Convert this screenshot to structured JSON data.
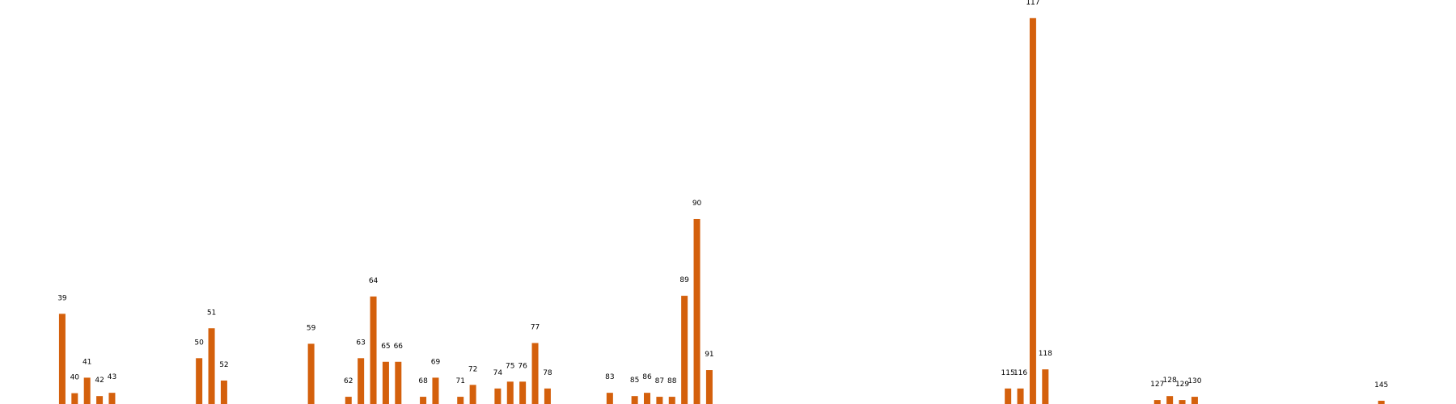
{
  "chart_data": {
    "type": "bar",
    "title": "",
    "xlabel": "",
    "ylabel": "",
    "grid": false,
    "axes_visible": false,
    "bar_color": "#d4600c",
    "label_color": "#000000",
    "categories": [
      "39",
      "40",
      "41",
      "42",
      "43",
      "50",
      "51",
      "52",
      "59",
      "62",
      "63",
      "64",
      "65",
      "66",
      "68",
      "69",
      "71",
      "72",
      "74",
      "75",
      "76",
      "77",
      "78",
      "83",
      "85",
      "86",
      "87",
      "88",
      "89",
      "90",
      "91",
      "115",
      "116",
      "117",
      "118",
      "127",
      "128",
      "129",
      "130",
      "145"
    ],
    "x": [
      39,
      40,
      41,
      42,
      43,
      50,
      51,
      52,
      59,
      62,
      63,
      64,
      65,
      66,
      68,
      69,
      71,
      72,
      74,
      75,
      76,
      77,
      78,
      83,
      85,
      86,
      87,
      88,
      89,
      90,
      91,
      115,
      116,
      117,
      118,
      127,
      128,
      129,
      130,
      145
    ],
    "values": [
      25.0,
      3.0,
      7.3,
      2.2,
      3.1,
      12.7,
      21.0,
      6.5,
      16.7,
      2.0,
      12.7,
      29.8,
      11.7,
      11.7,
      2.0,
      7.3,
      2.0,
      5.3,
      4.3,
      6.2,
      6.2,
      16.9,
      4.3,
      3.1,
      2.2,
      3.1,
      2.0,
      2.0,
      30.0,
      51.3,
      9.4,
      4.3,
      4.3,
      107.0,
      9.6,
      1.1,
      2.2,
      1.1,
      2.0,
      0.9
    ],
    "xlim": [
      34,
      151
    ],
    "ylim": [
      0,
      112
    ]
  }
}
